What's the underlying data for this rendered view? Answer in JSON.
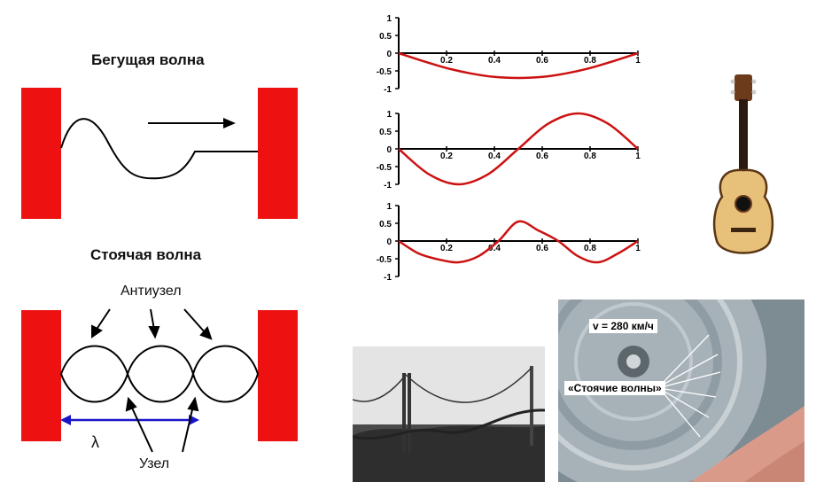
{
  "traveling_wave": {
    "title": "Бегущая волна"
  },
  "standing_wave": {
    "title": "Стоячая волна",
    "antinode_label": "Антиузел",
    "node_label": "Узел",
    "wavelength_symbol": "λ"
  },
  "mode_plots": {
    "x_ticks": [
      "0.2",
      "0.4",
      "0.6",
      "0.8",
      "1"
    ],
    "y_ticks": [
      "1",
      "0.5",
      "0",
      "-0.5",
      "-1"
    ],
    "curve_color": "#cc1111"
  },
  "chart_data": [
    {
      "type": "line",
      "title": "",
      "xlim": [
        0,
        1
      ],
      "ylim": [
        -1,
        1
      ],
      "series": [
        {
          "x": [
            0,
            0.1,
            0.2,
            0.3,
            0.4,
            0.5,
            0.6,
            0.7,
            0.8,
            0.9,
            1
          ],
          "y": [
            0,
            -0.22,
            -0.42,
            -0.57,
            -0.67,
            -0.7,
            -0.67,
            -0.57,
            -0.42,
            -0.22,
            0
          ]
        }
      ]
    },
    {
      "type": "line",
      "title": "",
      "xlim": [
        0,
        1
      ],
      "ylim": [
        -1,
        1
      ],
      "series": [
        {
          "x": [
            0,
            0.125,
            0.25,
            0.375,
            0.5,
            0.625,
            0.75,
            0.875,
            1
          ],
          "y": [
            0,
            -0.71,
            -1,
            -0.71,
            0,
            0.71,
            1,
            0.71,
            0
          ]
        }
      ]
    },
    {
      "type": "line",
      "title": "",
      "xlim": [
        0,
        1
      ],
      "ylim": [
        -1,
        1
      ],
      "series": [
        {
          "x": [
            0,
            0.083,
            0.167,
            0.25,
            0.333,
            0.417,
            0.5,
            0.583,
            0.667,
            0.75,
            0.833,
            0.917,
            1
          ],
          "y": [
            0,
            -0.35,
            -0.52,
            -0.6,
            -0.43,
            0,
            0.55,
            0.3,
            0,
            -0.43,
            -0.6,
            -0.35,
            0
          ]
        }
      ]
    }
  ],
  "tire_photo": {
    "speed_label": "v = 280 км/ч",
    "caption": "«Стоячие волны»"
  },
  "colors": {
    "wall_red": "#ee1111",
    "arrow_blue": "#1a14c8"
  }
}
